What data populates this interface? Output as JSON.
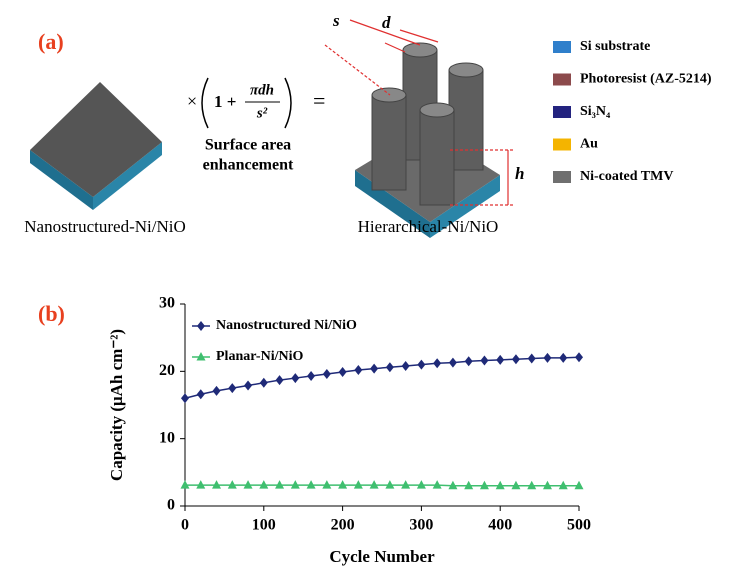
{
  "panel_a": {
    "label": "(a)",
    "formula": {
      "times": "×",
      "one_plus": "1 +",
      "numerator": "πdh",
      "denominator": "s²",
      "equals": "="
    },
    "caption": [
      "Surface area",
      "enhancement"
    ],
    "left_name": "Nanostructured-Ni/NiO",
    "right_name": "Hierarchical-Ni/NiO",
    "dims": {
      "s": "s",
      "d": "d",
      "h": "h"
    },
    "legend": [
      {
        "name": "Si substrate",
        "color": "#2f7fcb"
      },
      {
        "name": "Photoresist (AZ-5214)",
        "color": "#8c4a4c"
      },
      {
        "name": "Si₃N₄",
        "color": "#23237f"
      },
      {
        "name": "Au",
        "color": "#f4b400"
      },
      {
        "name": "Ni-coated TMV",
        "color": "#6f6f6f"
      }
    ]
  },
  "chart_data": {
    "type": "line",
    "panel_label": "(b)",
    "x_label": "Cycle Number",
    "y_label": "Capacity (μAh cm⁻²)",
    "x": [
      0,
      20,
      40,
      60,
      80,
      100,
      120,
      140,
      160,
      180,
      200,
      220,
      240,
      260,
      280,
      300,
      320,
      340,
      360,
      380,
      400,
      420,
      440,
      460,
      480,
      500
    ],
    "series": [
      {
        "name": "Nanostructured Ni/NiO",
        "color": "#1f2a78",
        "marker": "diamond",
        "values": [
          16.0,
          16.6,
          17.1,
          17.5,
          17.9,
          18.3,
          18.7,
          19.0,
          19.3,
          19.6,
          19.9,
          20.2,
          20.4,
          20.6,
          20.8,
          21.0,
          21.2,
          21.3,
          21.5,
          21.6,
          21.7,
          21.8,
          21.9,
          22.0,
          22.0,
          22.1
        ]
      },
      {
        "name": "Planar-Ni/NiO",
        "color": "#3fbf6f",
        "marker": "triangle",
        "values": [
          3.1,
          3.1,
          3.1,
          3.1,
          3.1,
          3.1,
          3.1,
          3.1,
          3.1,
          3.1,
          3.1,
          3.1,
          3.1,
          3.1,
          3.1,
          3.1,
          3.1,
          3.0,
          3.0,
          3.0,
          3.0,
          3.0,
          3.0,
          3.0,
          3.0,
          3.0
        ]
      }
    ],
    "xlim": [
      0,
      500
    ],
    "xticks": [
      0,
      100,
      200,
      300,
      400,
      500
    ],
    "ylim": [
      0,
      30
    ],
    "yticks": [
      0,
      10,
      20,
      30
    ],
    "grid": false,
    "legend_position": "upper-left"
  }
}
